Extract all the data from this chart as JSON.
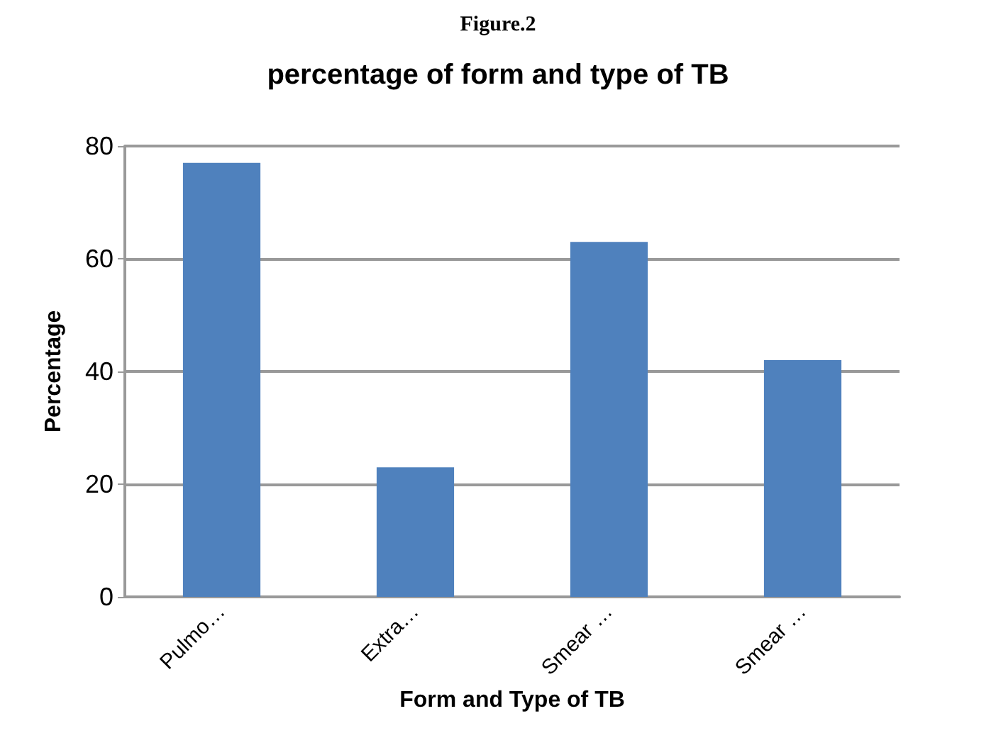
{
  "chart_data": {
    "type": "bar",
    "title": "percentage of form and type of TB",
    "annotations": [
      "Figure.2"
    ],
    "xlabel": "Form and Type of TB",
    "ylabel": "Percentage",
    "categories": [
      "Pulmo…",
      "Extra…",
      "Smear …",
      "Smear …"
    ],
    "values": [
      77,
      23,
      63,
      42
    ],
    "color": "#4f81bd",
    "ylim": [
      0,
      80
    ],
    "yticks": [
      0,
      20,
      40,
      60,
      80
    ],
    "grid": "y"
  }
}
